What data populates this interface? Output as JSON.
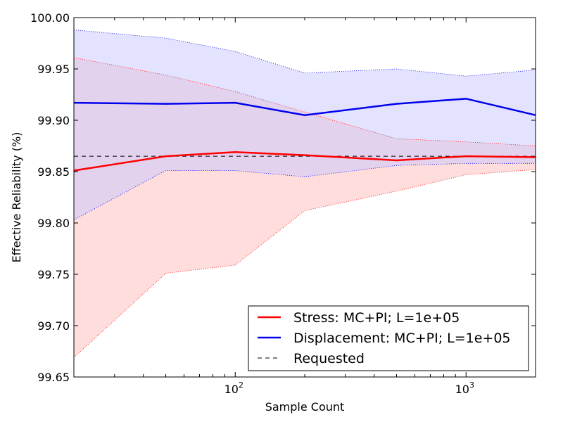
{
  "chart_data": {
    "type": "line",
    "xscale": "log",
    "xlim": [
      20,
      2000
    ],
    "ylim": [
      99.65,
      100.0
    ],
    "xlabel": "Sample Count",
    "ylabel": "Effective Reliability (%)",
    "y_ticks": [
      "99.65",
      "99.70",
      "99.75",
      "99.80",
      "99.85",
      "99.90",
      "99.95",
      "100.00"
    ],
    "x_major_ticks": [
      {
        "value": 100,
        "base": "10",
        "exp": "2"
      },
      {
        "value": 1000,
        "base": "10",
        "exp": "3"
      }
    ],
    "x": [
      20,
      50,
      100,
      200,
      500,
      1000,
      2000
    ],
    "series": [
      {
        "name": "Stress: MC+PI; L=1e+05",
        "color": "#ff0000",
        "band_color": "#ffdddd",
        "mean": [
          99.851,
          99.865,
          99.869,
          99.866,
          99.861,
          99.865,
          99.864
        ],
        "upper": [
          99.961,
          99.944,
          99.928,
          99.908,
          99.882,
          99.879,
          99.875
        ],
        "lower": [
          99.669,
          99.751,
          99.759,
          99.812,
          99.831,
          99.847,
          99.852
        ]
      },
      {
        "name": "Displacement: MC+PI; L=1e+05",
        "color": "#0000ee",
        "band_color": "#c8c8ff",
        "mean": [
          99.917,
          99.916,
          99.917,
          99.905,
          99.916,
          99.921,
          99.905
        ],
        "upper": [
          99.988,
          99.98,
          99.967,
          99.946,
          99.95,
          99.943,
          99.949
        ],
        "lower": [
          99.803,
          99.851,
          99.851,
          99.845,
          99.856,
          99.858,
          99.858
        ]
      }
    ],
    "reference": {
      "name": "Requested",
      "value": 99.865,
      "color": "#000000"
    },
    "legend_position": "lower-right",
    "grid": false
  }
}
